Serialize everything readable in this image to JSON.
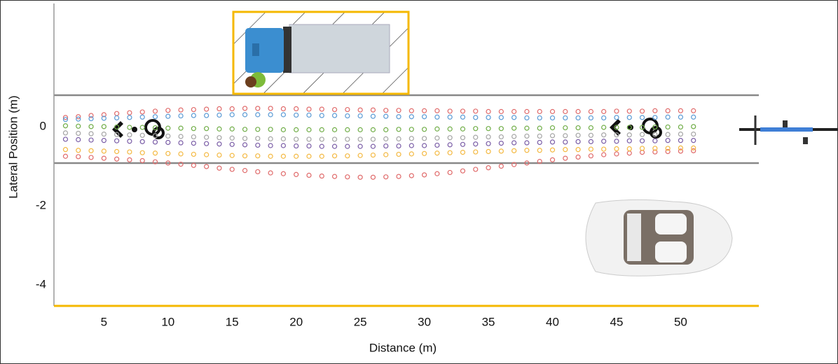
{
  "chart_data": {
    "type": "scatter",
    "x_label": "Distance (m)",
    "y_label": "Lateral Position (m)",
    "xlim": [
      1.1,
      56.1
    ],
    "ylim": [
      -4.53,
      3.11
    ],
    "xticks": [
      5,
      10,
      15,
      20,
      25,
      30,
      35,
      40,
      45,
      50
    ],
    "yticks": [
      0,
      -2,
      -4
    ],
    "x": [
      2,
      3,
      4,
      5,
      6,
      7,
      8,
      9,
      10,
      11,
      12,
      13,
      14,
      15,
      16,
      17,
      18,
      19,
      20,
      21,
      22,
      23,
      24,
      25,
      26,
      27,
      28,
      29,
      30,
      31,
      32,
      33,
      34,
      35,
      36,
      37,
      38,
      39,
      40,
      41,
      42,
      43,
      44,
      45,
      46,
      47,
      48,
      49,
      50,
      51
    ],
    "series": [
      {
        "color": "#e06b6b",
        "values": [
          0.23,
          0.25,
          0.28,
          0.3,
          0.33,
          0.35,
          0.37,
          0.39,
          0.41,
          0.42,
          0.43,
          0.44,
          0.45,
          0.45,
          0.46,
          0.46,
          0.46,
          0.45,
          0.45,
          0.44,
          0.44,
          0.43,
          0.43,
          0.42,
          0.42,
          0.41,
          0.41,
          0.4,
          0.4,
          0.4,
          0.39,
          0.39,
          0.39,
          0.38,
          0.38,
          0.38,
          0.38,
          0.38,
          0.38,
          0.38,
          0.38,
          0.38,
          0.38,
          0.39,
          0.39,
          0.39,
          0.4,
          0.4,
          0.4,
          0.4
        ]
      },
      {
        "color": "#e06b6b",
        "values": [
          -0.75,
          -0.76,
          -0.78,
          -0.8,
          -0.82,
          -0.84,
          -0.86,
          -0.89,
          -0.92,
          -0.95,
          -0.98,
          -1.01,
          -1.05,
          -1.08,
          -1.11,
          -1.14,
          -1.17,
          -1.19,
          -1.21,
          -1.23,
          -1.25,
          -1.26,
          -1.27,
          -1.28,
          -1.28,
          -1.27,
          -1.26,
          -1.24,
          -1.22,
          -1.19,
          -1.16,
          -1.12,
          -1.08,
          -1.04,
          -1.0,
          -0.96,
          -0.92,
          -0.88,
          -0.84,
          -0.8,
          -0.77,
          -0.74,
          -0.71,
          -0.69,
          -0.67,
          -0.65,
          -0.64,
          -0.63,
          -0.62,
          -0.61
        ]
      },
      {
        "color": "#f4b942",
        "values": [
          -0.58,
          -0.6,
          -0.61,
          -0.62,
          -0.63,
          -0.64,
          -0.66,
          -0.67,
          -0.68,
          -0.69,
          -0.7,
          -0.71,
          -0.72,
          -0.73,
          -0.74,
          -0.74,
          -0.75,
          -0.75,
          -0.75,
          -0.75,
          -0.75,
          -0.74,
          -0.74,
          -0.73,
          -0.72,
          -0.71,
          -0.7,
          -0.69,
          -0.68,
          -0.67,
          -0.66,
          -0.65,
          -0.64,
          -0.63,
          -0.62,
          -0.61,
          -0.6,
          -0.6,
          -0.59,
          -0.58,
          -0.58,
          -0.57,
          -0.57,
          -0.56,
          -0.56,
          -0.55,
          -0.55,
          -0.55,
          -0.54,
          -0.54
        ]
      },
      {
        "color": "#5b9bd5",
        "values": [
          0.18,
          0.19,
          0.2,
          0.21,
          0.22,
          0.23,
          0.24,
          0.25,
          0.26,
          0.27,
          0.28,
          0.28,
          0.29,
          0.3,
          0.3,
          0.3,
          0.3,
          0.3,
          0.29,
          0.29,
          0.28,
          0.28,
          0.27,
          0.27,
          0.26,
          0.26,
          0.25,
          0.25,
          0.25,
          0.24,
          0.24,
          0.24,
          0.23,
          0.23,
          0.23,
          0.23,
          0.22,
          0.22,
          0.22,
          0.22,
          0.22,
          0.22,
          0.22,
          0.23,
          0.23,
          0.23,
          0.23,
          0.24,
          0.24,
          0.24
        ]
      },
      {
        "color": "#70ad47",
        "values": [
          0.02,
          0.01,
          0.0,
          0.0,
          -0.01,
          -0.02,
          -0.02,
          -0.03,
          -0.04,
          -0.04,
          -0.05,
          -0.05,
          -0.06,
          -0.06,
          -0.07,
          -0.07,
          -0.07,
          -0.08,
          -0.08,
          -0.08,
          -0.08,
          -0.08,
          -0.08,
          -0.08,
          -0.08,
          -0.08,
          -0.07,
          -0.07,
          -0.07,
          -0.06,
          -0.06,
          -0.06,
          -0.05,
          -0.05,
          -0.05,
          -0.04,
          -0.04,
          -0.04,
          -0.03,
          -0.03,
          -0.03,
          -0.03,
          -0.02,
          -0.02,
          -0.02,
          -0.02,
          -0.01,
          -0.01,
          -0.01,
          0.0
        ]
      },
      {
        "color": "#7b5ea7",
        "values": [
          -0.32,
          -0.33,
          -0.34,
          -0.35,
          -0.36,
          -0.37,
          -0.38,
          -0.39,
          -0.4,
          -0.41,
          -0.42,
          -0.43,
          -0.44,
          -0.45,
          -0.46,
          -0.47,
          -0.48,
          -0.48,
          -0.49,
          -0.49,
          -0.5,
          -0.5,
          -0.5,
          -0.5,
          -0.5,
          -0.49,
          -0.49,
          -0.48,
          -0.48,
          -0.47,
          -0.46,
          -0.45,
          -0.44,
          -0.43,
          -0.42,
          -0.41,
          -0.41,
          -0.4,
          -0.39,
          -0.39,
          -0.38,
          -0.38,
          -0.37,
          -0.37,
          -0.36,
          -0.36,
          -0.36,
          -0.35,
          -0.35,
          -0.35
        ]
      },
      {
        "color": "#a5a5a5",
        "values": [
          -0.16,
          -0.17,
          -0.18,
          -0.19,
          -0.2,
          -0.21,
          -0.22,
          -0.23,
          -0.24,
          -0.25,
          -0.26,
          -0.27,
          -0.28,
          -0.29,
          -0.3,
          -0.3,
          -0.31,
          -0.31,
          -0.32,
          -0.32,
          -0.32,
          -0.32,
          -0.32,
          -0.32,
          -0.32,
          -0.31,
          -0.31,
          -0.3,
          -0.3,
          -0.29,
          -0.28,
          -0.28,
          -0.27,
          -0.26,
          -0.26,
          -0.25,
          -0.24,
          -0.24,
          -0.23,
          -0.23,
          -0.22,
          -0.22,
          -0.21,
          -0.21,
          -0.21,
          -0.2,
          -0.2,
          -0.2,
          -0.19,
          -0.19
        ]
      }
    ]
  }
}
